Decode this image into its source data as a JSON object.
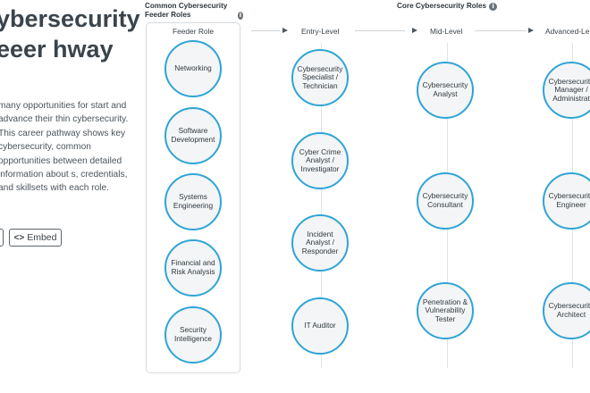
{
  "title": "ybersecurity eeer hway",
  "intro": "many opportunities for start and advance their thin cybersecurity. This career pathway shows key cybersecurity, common opportunities between detailed information about s, credentials, and skillsets with each role.",
  "buttons": {
    "embed_label": "Embed",
    "embed_icon": "code-icon"
  },
  "feeder_section": {
    "title": "Common Cybersecurity Feeder Roles",
    "column_label": "Feeder Role"
  },
  "core_section": {
    "title": "Core Cybersecurity Roles"
  },
  "columns": {
    "entry": "Entry-Level",
    "mid": "Mid-Level",
    "advanced": "Advanced-Le"
  },
  "feeder_roles": [
    "Networking",
    "Software Development",
    "Systems Engineering",
    "Financial and Risk Analysis",
    "Security Intelligence"
  ],
  "entry_roles": [
    "Cybersecurity Specialist / Technician",
    "Cyber Crime Analyst / Investigator",
    "Incident Analyst / Responder",
    "IT Auditor"
  ],
  "mid_roles": [
    "Cybersecurity Analyst",
    "Cybersecurity Consultant",
    "Penetration & Vulnerability Tester"
  ],
  "advanced_roles": [
    "Cybersecurity Manager / Administrat",
    "Cybersecurity Engineer",
    "Cybersecurity Architect"
  ],
  "colors": {
    "node_border": "#2fa4d6",
    "node_fill": "#f4f5f6"
  }
}
